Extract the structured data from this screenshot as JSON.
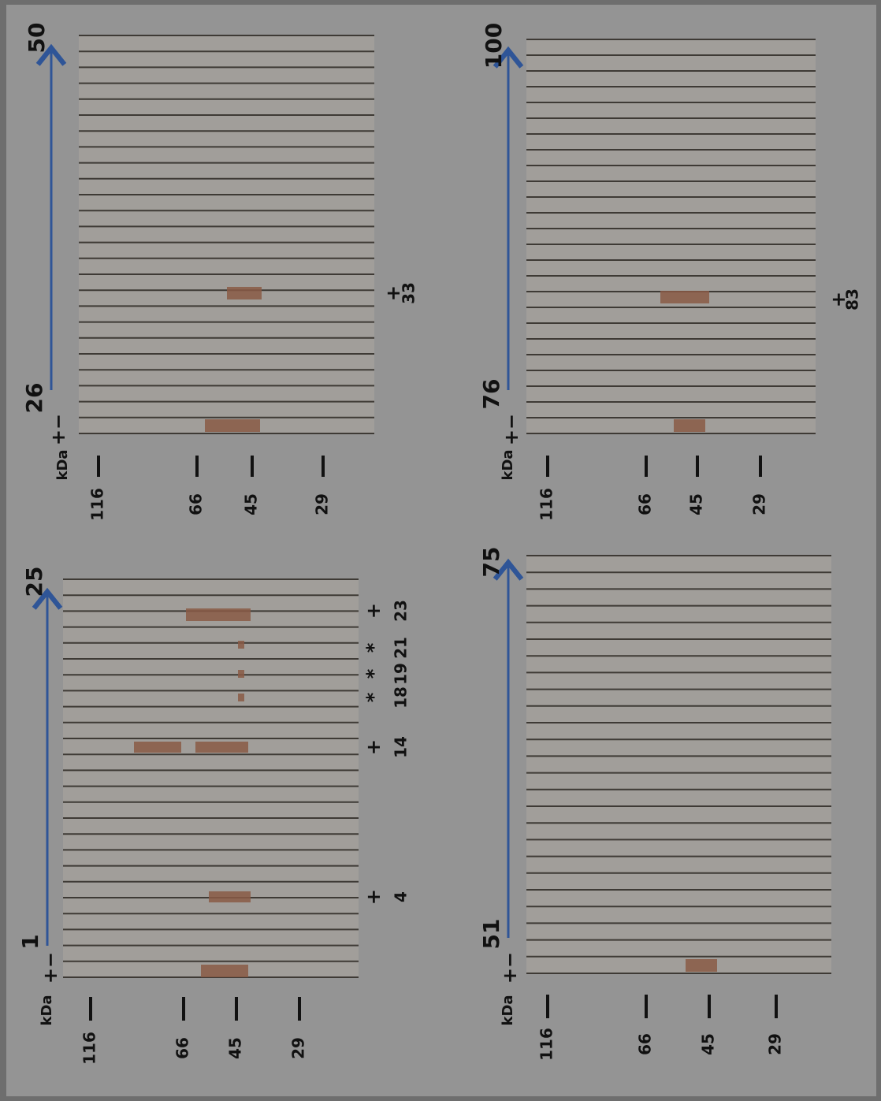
{
  "panels": [
    {
      "kda": "kDa",
      "markers": [
        "116",
        "66",
        "45",
        "29"
      ],
      "control": "+−",
      "first_lane": "1",
      "last_lane": "25",
      "annotations": [
        {
          "symbol": "+",
          "lane": "4"
        },
        {
          "symbol": "+",
          "lane": "14"
        },
        {
          "symbol": "*",
          "lane": "18"
        },
        {
          "symbol": "*",
          "lane": "19"
        },
        {
          "symbol": "*",
          "lane": "21"
        },
        {
          "symbol": "+",
          "lane": "23"
        }
      ]
    },
    {
      "kda": "kDa",
      "markers": [
        "116",
        "66",
        "45",
        "29"
      ],
      "control": "+−",
      "first_lane": "26",
      "last_lane": "50",
      "annotations": [
        {
          "symbol": "+",
          "lane": "33"
        }
      ]
    },
    {
      "kda": "kDa",
      "markers": [
        "116",
        "66",
        "45",
        "29"
      ],
      "control": "+−",
      "first_lane": "51",
      "last_lane": "75",
      "annotations": []
    },
    {
      "kda": "kDa",
      "markers": [
        "116",
        "66",
        "45",
        "29"
      ],
      "control": "+−",
      "first_lane": "76",
      "last_lane": "100",
      "annotations": [
        {
          "symbol": "+",
          "lane": "83"
        }
      ]
    }
  ]
}
